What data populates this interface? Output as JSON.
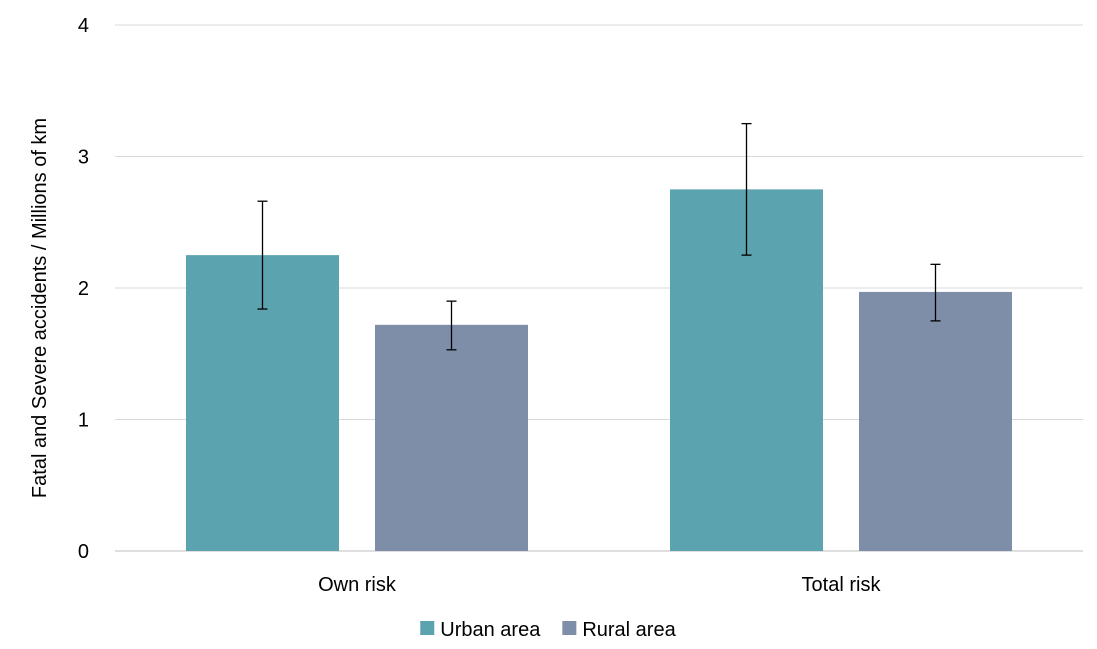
{
  "chart_data": {
    "type": "bar",
    "title": "",
    "xlabel": "",
    "ylabel": "Fatal and Severe accidents / Millions of km",
    "ylim": [
      0,
      4
    ],
    "yticks": [
      0,
      1,
      2,
      3,
      4
    ],
    "grid": true,
    "legend_position": "bottom",
    "categories": [
      "Own risk",
      "Total risk"
    ],
    "series": [
      {
        "name": "Urban area",
        "color": "#5BA3AE",
        "values": [
          2.25,
          2.75
        ],
        "error_low": [
          1.84,
          2.25
        ],
        "error_high": [
          2.66,
          3.25
        ]
      },
      {
        "name": "Rural area",
        "color": "#7F8EA8",
        "values": [
          1.72,
          1.97
        ],
        "error_low": [
          1.53,
          1.75
        ],
        "error_high": [
          1.9,
          2.18
        ]
      }
    ]
  }
}
